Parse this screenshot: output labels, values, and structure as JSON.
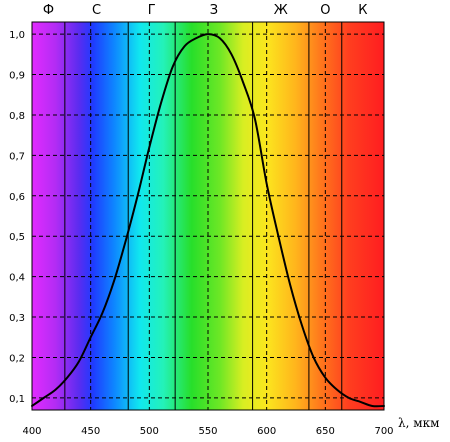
{
  "chart_data": {
    "type": "line",
    "title": "",
    "xlabel": "λ, мкм",
    "ylabel": "",
    "xlim": [
      400,
      700
    ],
    "ylim": [
      0.07,
      1.03
    ],
    "grid": true,
    "x_ticks": [
      {
        "value": 400,
        "label": "400"
      },
      {
        "value": 450,
        "label": "450"
      },
      {
        "value": 500,
        "label": "500"
      },
      {
        "value": 550,
        "label": "550"
      },
      {
        "value": 600,
        "label": "600"
      },
      {
        "value": 650,
        "label": "650"
      },
      {
        "value": 700,
        "label": "700"
      }
    ],
    "y_ticks": [
      {
        "value": 0.1,
        "label": "0,1"
      },
      {
        "value": 0.2,
        "label": "0,2"
      },
      {
        "value": 0.3,
        "label": "0,3"
      },
      {
        "value": 0.4,
        "label": "0,4"
      },
      {
        "value": 0.5,
        "label": "0,5"
      },
      {
        "value": 0.6,
        "label": "0,6"
      },
      {
        "value": 0.7,
        "label": "0,7"
      },
      {
        "value": 0.8,
        "label": "0,8"
      },
      {
        "value": 0.9,
        "label": "0,9"
      },
      {
        "value": 1.0,
        "label": "1,0"
      }
    ],
    "color_bands": [
      {
        "label": "Ф",
        "start": 400,
        "end": 428
      },
      {
        "label": "С",
        "start": 428,
        "end": 482
      },
      {
        "label": "Г",
        "start": 482,
        "end": 522
      },
      {
        "label": "З",
        "start": 522,
        "end": 588
      },
      {
        "label": "Ж",
        "start": 588,
        "end": 636
      },
      {
        "label": "О",
        "start": 636,
        "end": 664
      },
      {
        "label": "К",
        "start": 664,
        "end": 700
      }
    ],
    "spectrum_colors": [
      {
        "wavelength": 400,
        "color": "#e22bff"
      },
      {
        "wavelength": 420,
        "color": "#b32cf4"
      },
      {
        "wavelength": 440,
        "color": "#5a2cf0"
      },
      {
        "wavelength": 452,
        "color": "#1f3bff"
      },
      {
        "wavelength": 470,
        "color": "#0e86ff"
      },
      {
        "wavelength": 492,
        "color": "#10e8ef"
      },
      {
        "wavelength": 512,
        "color": "#24f2b8"
      },
      {
        "wavelength": 536,
        "color": "#27df2a"
      },
      {
        "wavelength": 560,
        "color": "#6de725"
      },
      {
        "wavelength": 580,
        "color": "#d8ee22"
      },
      {
        "wavelength": 600,
        "color": "#fbe61e"
      },
      {
        "wavelength": 625,
        "color": "#ffb41c"
      },
      {
        "wavelength": 645,
        "color": "#ff7a1c"
      },
      {
        "wavelength": 670,
        "color": "#ff3e1f"
      },
      {
        "wavelength": 700,
        "color": "#ff1d20"
      }
    ],
    "series": [
      {
        "color": "#000000",
        "points": [
          [
            400,
            0.08
          ],
          [
            410,
            0.1
          ],
          [
            420,
            0.12
          ],
          [
            430,
            0.15
          ],
          [
            440,
            0.19
          ],
          [
            450,
            0.25
          ],
          [
            460,
            0.31
          ],
          [
            470,
            0.39
          ],
          [
            480,
            0.49
          ],
          [
            490,
            0.6
          ],
          [
            500,
            0.72
          ],
          [
            510,
            0.83
          ],
          [
            520,
            0.92
          ],
          [
            530,
            0.97
          ],
          [
            540,
            0.99
          ],
          [
            550,
            1.0
          ],
          [
            560,
            0.99
          ],
          [
            570,
            0.95
          ],
          [
            580,
            0.88
          ],
          [
            590,
            0.79
          ],
          [
            600,
            0.63
          ],
          [
            610,
            0.5
          ],
          [
            620,
            0.38
          ],
          [
            630,
            0.28
          ],
          [
            640,
            0.2
          ],
          [
            650,
            0.15
          ],
          [
            660,
            0.12
          ],
          [
            670,
            0.1
          ],
          [
            680,
            0.09
          ],
          [
            690,
            0.08
          ],
          [
            700,
            0.08
          ]
        ]
      }
    ]
  }
}
